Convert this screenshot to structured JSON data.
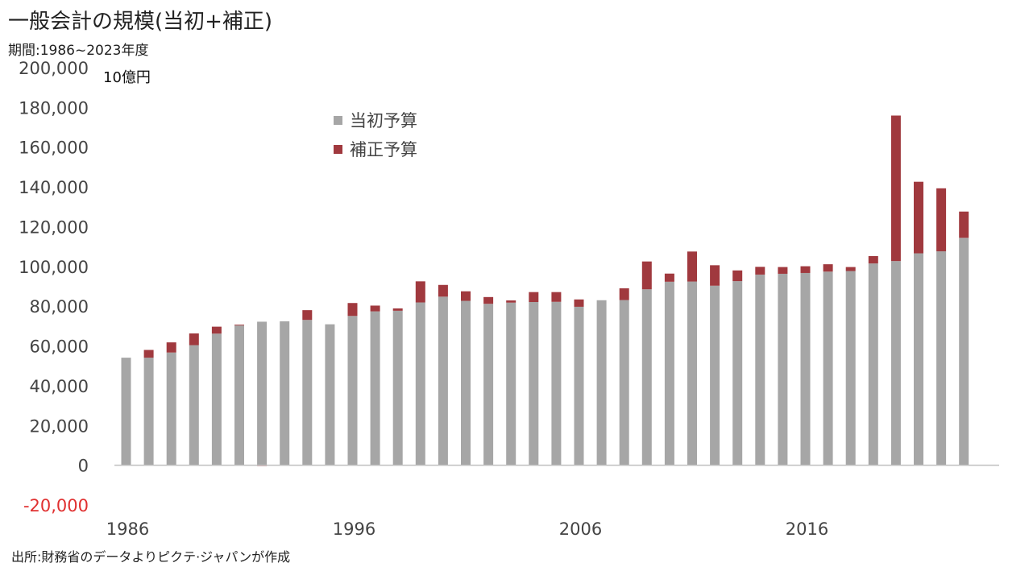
{
  "header": {
    "title": "一般会計の規模(当初+補正)",
    "subtitle": "期間:1986~2023年度"
  },
  "footer": {
    "source": "出所:財務省のデータよりピクテ·ジャパンが作成"
  },
  "colors": {
    "initial": "#a6a6a6",
    "supplementary": "#a0393e",
    "axis": "#bfbfbf",
    "negative_label": "#e03030"
  },
  "chart_data": {
    "type": "bar",
    "stacked": true,
    "unit_label": "10億円",
    "x": [
      1986,
      1987,
      1988,
      1989,
      1990,
      1991,
      1992,
      1993,
      1994,
      1995,
      1996,
      1997,
      1998,
      1999,
      2000,
      2001,
      2002,
      2003,
      2004,
      2005,
      2006,
      2007,
      2008,
      2009,
      2010,
      2011,
      2012,
      2013,
      2014,
      2015,
      2016,
      2017,
      2018,
      2019,
      2020,
      2021,
      2022,
      2023
    ],
    "x_tick_labels": [
      "1986",
      "1996",
      "2006",
      "2016"
    ],
    "ylim": [
      -20000,
      200000
    ],
    "y_ticks": [
      -20000,
      0,
      20000,
      40000,
      60000,
      80000,
      100000,
      120000,
      140000,
      160000,
      180000,
      200000
    ],
    "y_tick_labels": [
      "-20,000",
      "0",
      "20,000",
      "40,000",
      "60,000",
      "80,000",
      "100,000",
      "120,000",
      "140,000",
      "160,000",
      "180,000",
      "200,000"
    ],
    "legend": {
      "position": "top-center"
    },
    "series": [
      {
        "name": "当初予算",
        "values": [
          54100,
          54100,
          56700,
          60400,
          66200,
          70300,
          72200,
          72400,
          73100,
          70900,
          75100,
          77400,
          77700,
          81900,
          84800,
          82700,
          81200,
          81800,
          82100,
          82200,
          79700,
          83000,
          83100,
          88500,
          92300,
          92400,
          90300,
          92600,
          95900,
          96300,
          96700,
          97400,
          97700,
          101500,
          102700,
          106600,
          107600,
          114400
        ]
      },
      {
        "name": "補正予算",
        "values": [
          0,
          3900,
          5100,
          5900,
          3500,
          400,
          -300,
          0,
          4900,
          0,
          6500,
          2900,
          1200,
          10600,
          5900,
          4800,
          3400,
          1100,
          5000,
          4900,
          3700,
          0,
          5900,
          14000,
          4100,
          15100,
          10300,
          5400,
          3900,
          3400,
          3400,
          3700,
          2000,
          3700,
          73200,
          36000,
          31700,
          13200
        ]
      }
    ]
  }
}
